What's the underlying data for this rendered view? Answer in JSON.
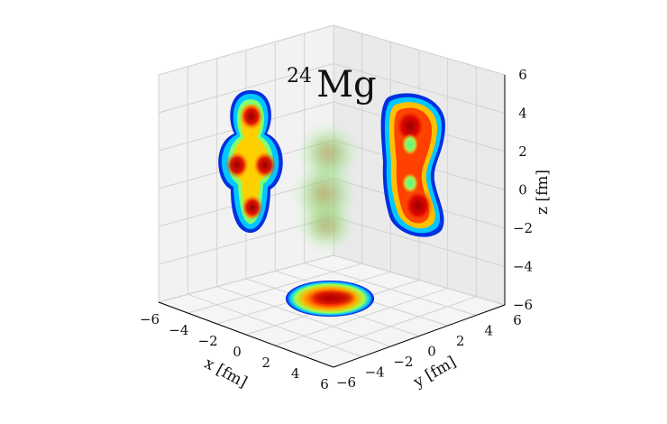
{
  "chart_data": {
    "type": "3d-density",
    "title": {
      "superscript": "24",
      "main": "Mg"
    },
    "xlabel": "x [fm]",
    "ylabel": "y [fm]",
    "zlabel": "z [fm]",
    "xlim": [
      -6,
      6
    ],
    "ylim": [
      -6,
      6
    ],
    "zlim": [
      -6,
      6
    ],
    "x_ticks": [
      "−6",
      "−4",
      "−2",
      "0",
      "2",
      "4",
      "6"
    ],
    "y_ticks": [
      "−6",
      "−4",
      "−2",
      "0",
      "2",
      "4",
      "6"
    ],
    "z_ticks": [
      "−6",
      "−4",
      "−2",
      "0",
      "2",
      "4",
      "6"
    ],
    "grid": true,
    "colormap": "jet",
    "projections": [
      {
        "plane": "x-z",
        "description_hidden": true,
        "peaks_fm": [
          [
            0,
            3.3
          ],
          [
            -2.0,
            0.8
          ],
          [
            2.0,
            0.8
          ],
          [
            0,
            -1.2
          ]
        ]
      },
      {
        "plane": "y-z",
        "peaks_fm": [
          [
            0,
            2.0
          ],
          [
            0,
            -0.8
          ]
        ]
      },
      {
        "plane": "x-y",
        "peaks_fm": [
          [
            0,
            0
          ]
        ]
      }
    ]
  }
}
